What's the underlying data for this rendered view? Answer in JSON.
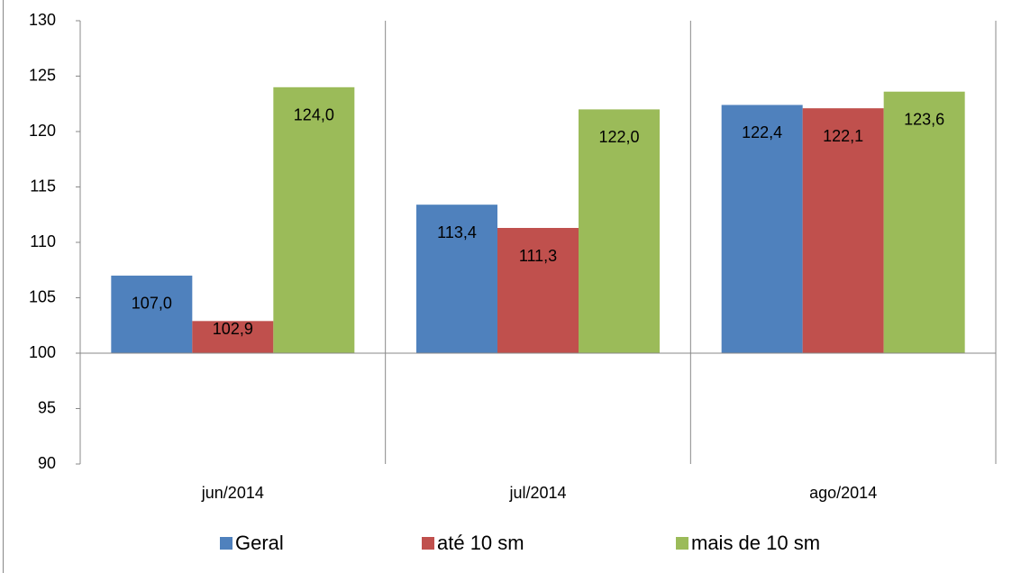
{
  "chart_data": {
    "type": "bar",
    "categories": [
      "jun/2014",
      "jul/2014",
      "ago/2014"
    ],
    "series": [
      {
        "name": "Geral",
        "color": "#4f81bd",
        "values": [
          107.0,
          113.4,
          122.4
        ],
        "value_labels": [
          "107,0",
          "113,4",
          "122,4"
        ]
      },
      {
        "name": "até 10 sm",
        "color": "#c0504d",
        "values": [
          102.9,
          111.3,
          122.1
        ],
        "value_labels": [
          "102,9",
          "111,3",
          "122,1"
        ]
      },
      {
        "name": "mais de 10 sm",
        "color": "#9bbb59",
        "values": [
          124.0,
          122.0,
          123.6
        ],
        "value_labels": [
          "124,0",
          "122,0",
          "123,6"
        ]
      }
    ],
    "ylim": [
      90,
      130
    ],
    "yticks": [
      90,
      95,
      100,
      105,
      110,
      115,
      120,
      125,
      130
    ],
    "axis_crossing": 100,
    "grid": false,
    "legend": "bottom"
  }
}
